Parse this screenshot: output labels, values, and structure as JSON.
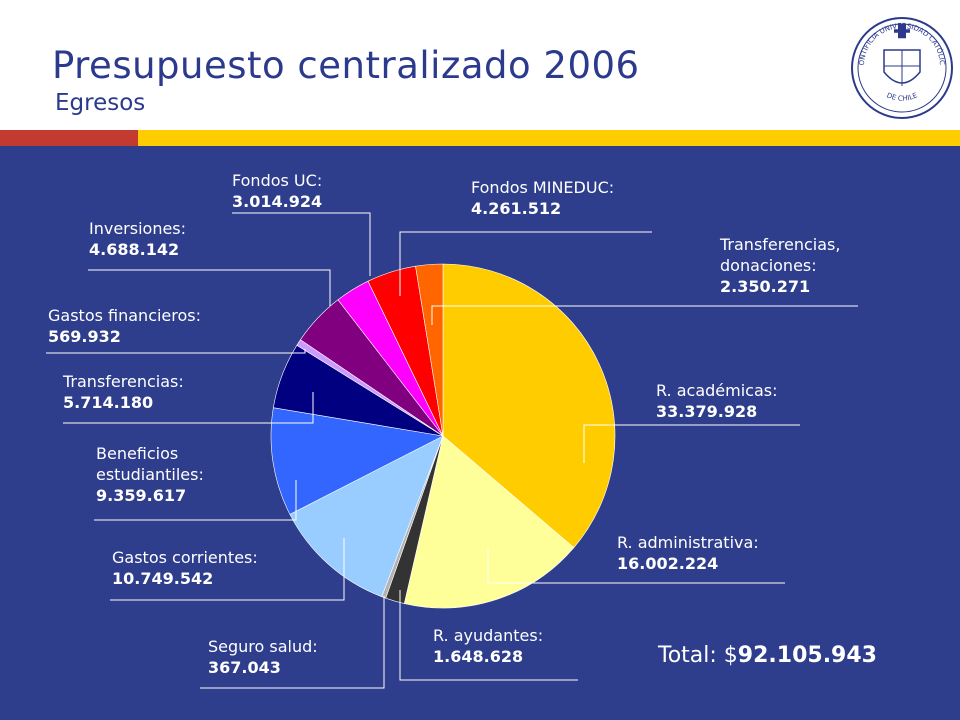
{
  "header": {
    "title": "Presupuesto centralizado 2006",
    "subtitle": "Egresos"
  },
  "logo": {
    "text_top": "PONTIFICIA UNIVERSIDAD CATÓLICA",
    "text_bottom": "DE CHILE"
  },
  "colors": {
    "header_text": "#2b3a8c",
    "panel": "#2e3d8c",
    "stripe_yellow": "#ffcc00",
    "stripe_red": "#c23a30"
  },
  "chart_data": {
    "type": "pie",
    "total_prefix": "Total: $",
    "total_value": "92.105.943",
    "slices": [
      {
        "name": "R. académicas:",
        "value": 33379928,
        "value_label": "33.379.928",
        "color": "#ffcc00"
      },
      {
        "name": "R. administrativa:",
        "value": 16002224,
        "value_label": "16.002.224",
        "color": "#ffff99"
      },
      {
        "name": "R. ayudantes:",
        "value": 1648628,
        "value_label": "1.648.628",
        "color": "#333333"
      },
      {
        "name": "Seguro salud:",
        "value": 367043,
        "value_label": "367.043",
        "color": "#b3b3b3"
      },
      {
        "name": "Gastos corrientes:",
        "value": 10749542,
        "value_label": "10.749.542",
        "color": "#99ccff"
      },
      {
        "name": "Beneficios estudiantiles:",
        "value": 9359617,
        "value_label": "9.359.617",
        "color": "#3366ff"
      },
      {
        "name": "Transferencias:",
        "value": 5714180,
        "value_label": "5.714.180",
        "color": "#000080"
      },
      {
        "name": "Gastos financieros:",
        "value": 569932,
        "value_label": "569.932",
        "color": "#cc99ff"
      },
      {
        "name": "Inversiones:",
        "value": 4688142,
        "value_label": "4.688.142",
        "color": "#800080"
      },
      {
        "name": "Fondos UC:",
        "value": 3014924,
        "value_label": "3.014.924",
        "color": "#ff00ff"
      },
      {
        "name": "Fondos MINEDUC:",
        "value": 4261512,
        "value_label": "4.261.512",
        "color": "#ff0000"
      },
      {
        "name": "Transferencias, donaciones:",
        "value": 2350271,
        "value_label": "2.350.271",
        "color": "#ff6600"
      }
    ]
  }
}
